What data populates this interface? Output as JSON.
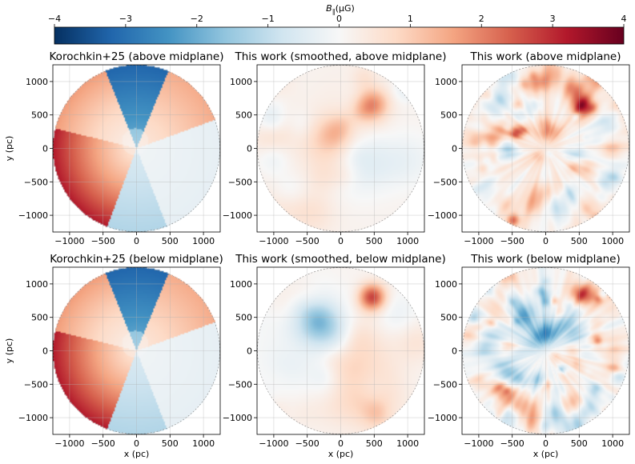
{
  "colorbar": {
    "label": "B_∥ (μG)",
    "label_symbol": "B",
    "label_subscript": "∥",
    "label_units": "(μG)",
    "range": [
      -4,
      4
    ],
    "ticks": [
      "−4",
      "−3",
      "−2",
      "−1",
      "0",
      "1",
      "2",
      "3",
      "4"
    ],
    "tick_values": [
      -4,
      -3,
      -2,
      -1,
      0,
      1,
      2,
      3,
      4
    ],
    "colormap": "RdBu_r",
    "colors": [
      "#053061",
      "#2166ac",
      "#4393c3",
      "#92c5de",
      "#d1e5f0",
      "#f7f7f7",
      "#fddbc7",
      "#f4a582",
      "#d6604d",
      "#b2182b",
      "#67001f"
    ]
  },
  "axes": {
    "xlabel": "x (pc)",
    "ylabel": "y (pc)",
    "xlim": [
      -1250,
      1250
    ],
    "ylim": [
      -1250,
      1250
    ],
    "x_ticks": [
      "−1000",
      "−500",
      "0",
      "500",
      "1000"
    ],
    "y_ticks": [
      "1000",
      "500",
      "0",
      "−500",
      "−1000"
    ],
    "tick_values": [
      -1000,
      -500,
      0,
      500,
      1000
    ],
    "disk_radius": 1250,
    "grid": true
  },
  "chart_data": [
    {
      "type": "heatmap",
      "model": "model_a",
      "title": "Korochkin+25 (above midplane)",
      "row": 0,
      "col": 0,
      "seed": 11
    },
    {
      "type": "heatmap",
      "model": "smooth_above",
      "title": "This work (smoothed, above midplane)",
      "row": 0,
      "col": 1,
      "seed": 23
    },
    {
      "type": "heatmap",
      "model": "raw_above",
      "title": "This work (above midplane)",
      "row": 0,
      "col": 2,
      "seed": 37
    },
    {
      "type": "heatmap",
      "model": "model_b",
      "title": "Korochkin+25 (below midplane)",
      "row": 1,
      "col": 0,
      "seed": 41
    },
    {
      "type": "heatmap",
      "model": "smooth_below",
      "title": "This work (smoothed, below midplane)",
      "row": 1,
      "col": 1,
      "seed": 53
    },
    {
      "type": "heatmap",
      "model": "raw_below",
      "title": "This work (below midplane)",
      "row": 1,
      "col": 2,
      "seed": 67
    }
  ]
}
